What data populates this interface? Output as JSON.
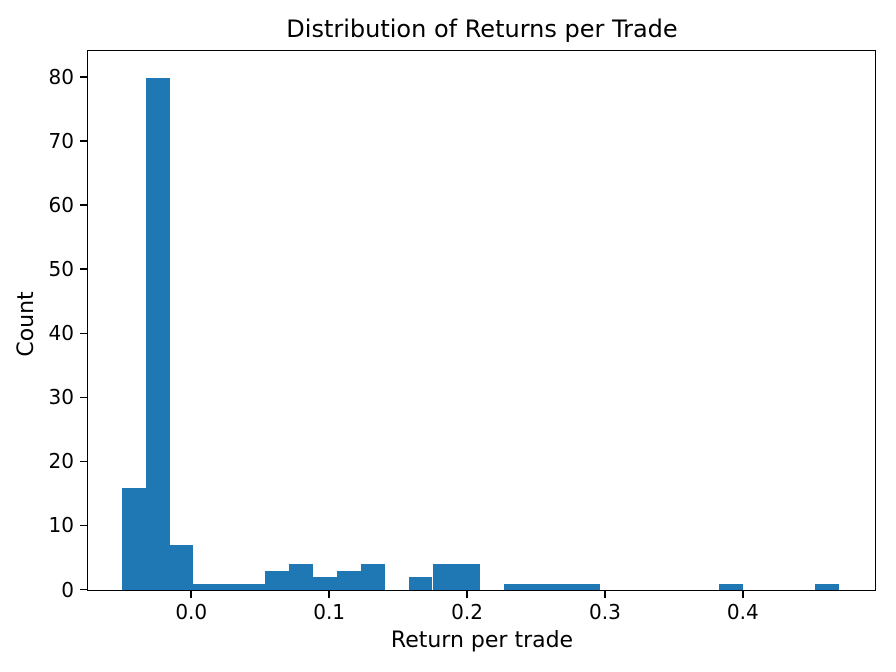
{
  "chart_data": {
    "type": "bar",
    "chart_kind": "histogram",
    "title": "Distribution of Returns per Trade",
    "xlabel": "Return per trade",
    "ylabel": "Count",
    "bar_color": "#1f77b4",
    "text_color": "#000000",
    "background_color": "#ffffff",
    "grid": false,
    "legend": "none",
    "bin_start": -0.05,
    "bin_end": 0.47,
    "num_bins": 30,
    "bin_width": 0.017333,
    "counts": [
      16,
      80,
      7,
      1,
      1,
      1,
      3,
      4,
      2,
      3,
      4,
      0,
      2,
      4,
      4,
      0,
      1,
      1,
      1,
      1,
      0,
      0,
      0,
      0,
      0,
      1,
      0,
      0,
      0,
      1
    ],
    "total_count": 138,
    "max_count": 80,
    "xlim": [
      -0.0745,
      0.4955
    ],
    "ylim": [
      0,
      84
    ],
    "xticks": [
      {
        "value": 0.0,
        "label": "0.0"
      },
      {
        "value": 0.1,
        "label": "0.1"
      },
      {
        "value": 0.2,
        "label": "0.2"
      },
      {
        "value": 0.3,
        "label": "0.3"
      },
      {
        "value": 0.4,
        "label": "0.4"
      }
    ],
    "yticks": [
      {
        "value": 0,
        "label": "0"
      },
      {
        "value": 10,
        "label": "10"
      },
      {
        "value": 20,
        "label": "20"
      },
      {
        "value": 30,
        "label": "30"
      },
      {
        "value": 40,
        "label": "40"
      },
      {
        "value": 50,
        "label": "50"
      },
      {
        "value": 60,
        "label": "60"
      },
      {
        "value": 70,
        "label": "70"
      },
      {
        "value": 80,
        "label": "80"
      }
    ]
  }
}
